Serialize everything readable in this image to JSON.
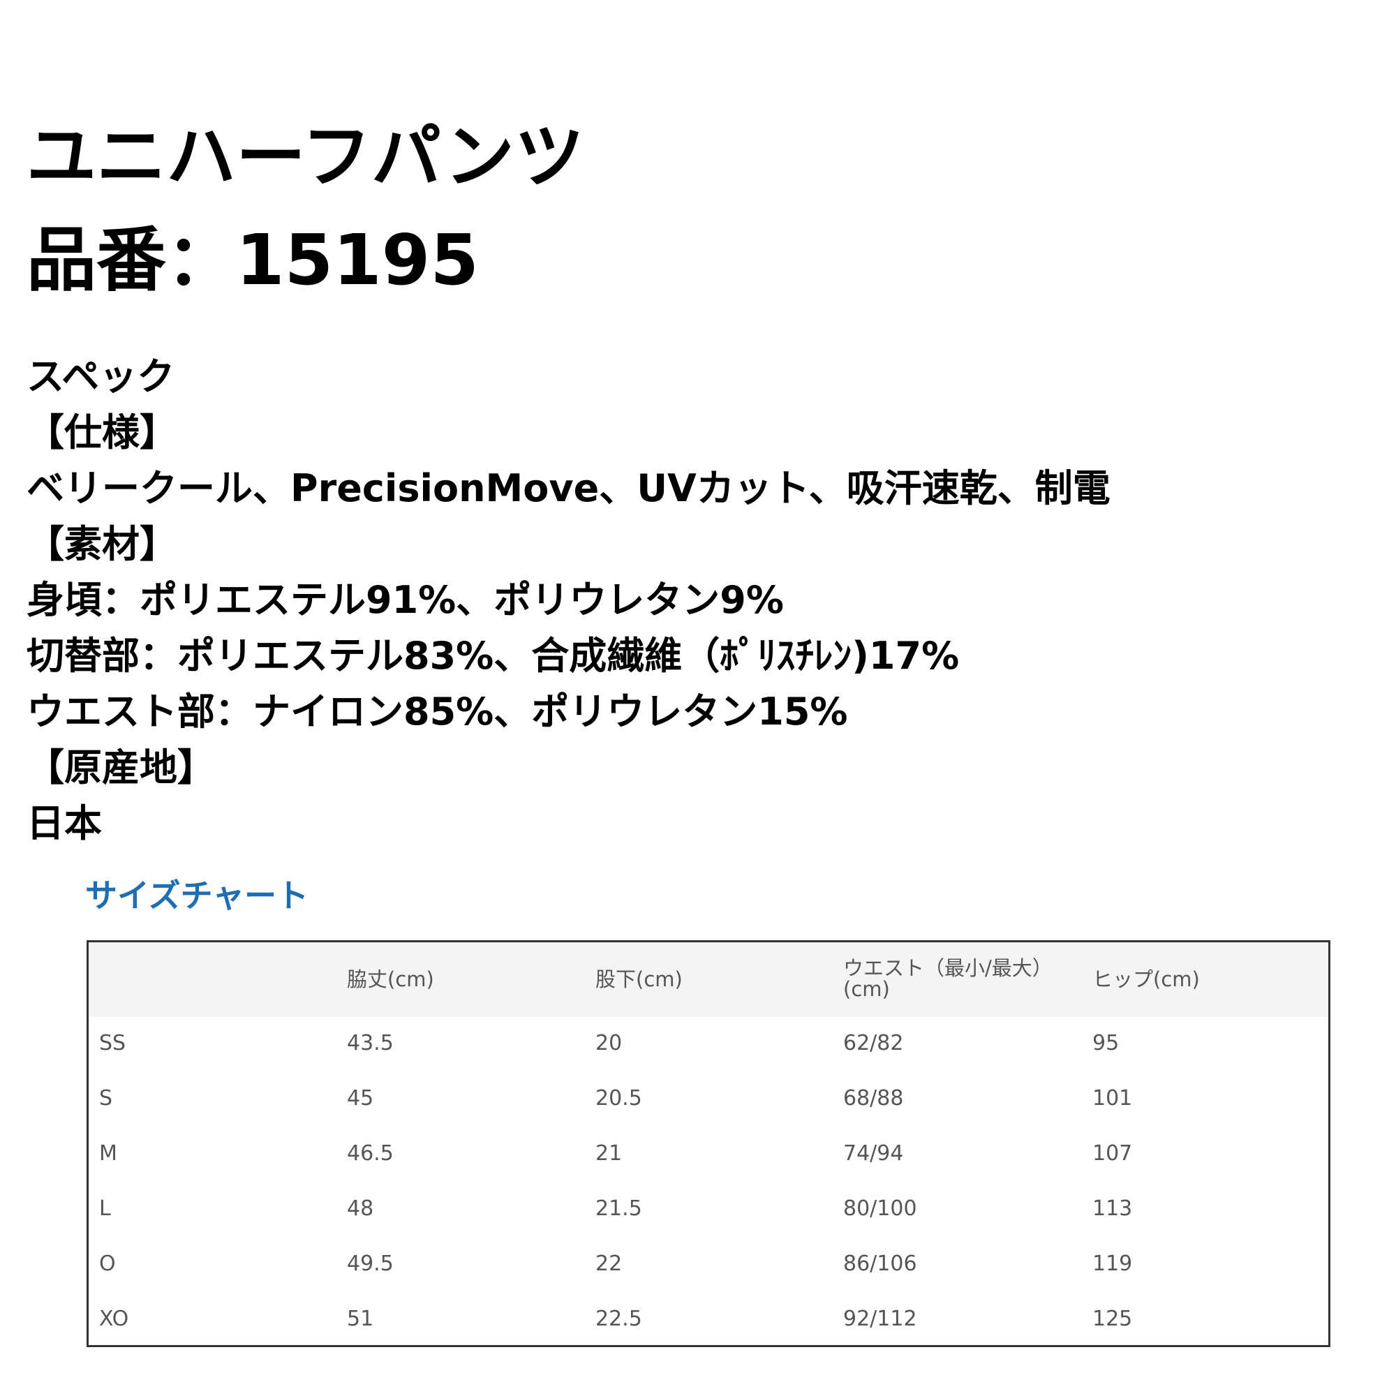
{
  "product": {
    "name": "ユニハーフパンツ",
    "number": "品番：15195"
  },
  "spec_lines": [
    "スペック",
    "【仕様】",
    "ベリークール、PrecisionMove、UVカット、吸汗速乾、制電",
    "【素材】",
    "身頃：ポリエステル91%、ポリウレタン9%",
    "切替部：ポリエステル83%、合成繊維（ﾎﾟﾘｽﾁﾚﾝ)17%",
    "ウエスト部：ナイロン85%、ポリウレタン15%",
    "【原産地】",
    "日本"
  ],
  "size_chart": {
    "title": "サイズチャート",
    "title_color": "#1f6db3",
    "headers": [
      "",
      "脇丈(cm)",
      "股下(cm)",
      "ウエスト（最小/最大）(cm)",
      "ヒップ(cm)"
    ],
    "rows": [
      [
        "SS",
        "43.5",
        "20",
        "62/82",
        "95"
      ],
      [
        "S",
        "45",
        "20.5",
        "68/88",
        "101"
      ],
      [
        "M",
        "46.5",
        "21",
        "74/94",
        "107"
      ],
      [
        "L",
        "48",
        "21.5",
        "80/100",
        "113"
      ],
      [
        "O",
        "49.5",
        "22",
        "86/106",
        "119"
      ],
      [
        "XO",
        "51",
        "22.5",
        "92/112",
        "125"
      ]
    ]
  }
}
